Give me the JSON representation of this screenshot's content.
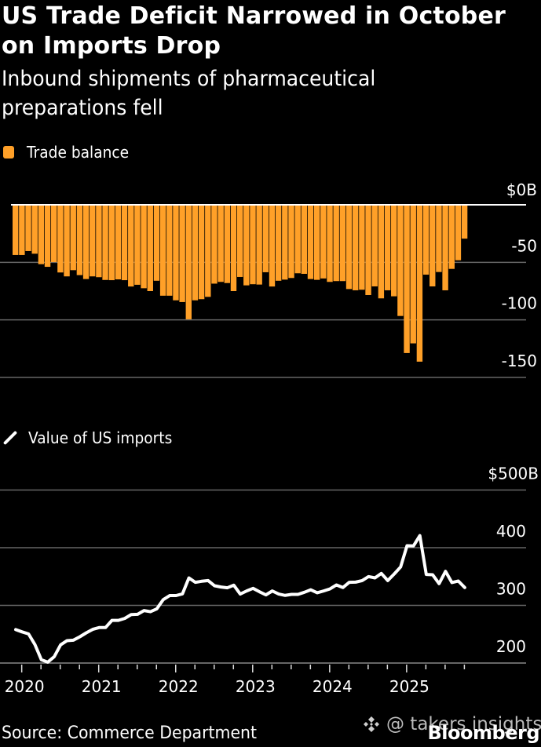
{
  "header": {
    "title": "US Trade Deficit Narrowed in October on Imports Drop",
    "subtitle": "Inbound shipments of pharmaceutical preparations fell"
  },
  "footer": {
    "source": "Source: Commerce Department",
    "brand": "Bloomberg",
    "watermark": "@ takers insights",
    "watermark_icon": "diamond-logo-icon"
  },
  "colors": {
    "bar": "#ffa028",
    "line": "#ffffff",
    "background": "#000000",
    "grid": "#666666"
  },
  "chart_data": [
    {
      "type": "bar",
      "title": "Trade balance",
      "legend": "Trade balance",
      "legend_position": "top-left",
      "ylabel": "",
      "y_unit": "$B",
      "ylim": [
        -150,
        0
      ],
      "yticks": [
        0,
        -50,
        -100,
        -150
      ],
      "ytick_labels": [
        "$0B",
        "-50",
        "-100",
        "-150"
      ],
      "grid": true,
      "x_start": "2019-12",
      "x_end": "2025-10",
      "frequency": "monthly",
      "values": [
        -43.6,
        -43.6,
        -40.2,
        -42.5,
        -51.6,
        -53.9,
        -49.8,
        -58.8,
        -62.2,
        -56.8,
        -61.1,
        -64.5,
        -62.2,
        -62.9,
        -65.3,
        -65.5,
        -64.8,
        -65.5,
        -71.0,
        -69.5,
        -72.5,
        -75.0,
        -66.0,
        -79.0,
        -79.0,
        -83.0,
        -84.5,
        -99.5,
        -83.0,
        -82.0,
        -80.0,
        -68.5,
        -67.0,
        -68.0,
        -75.0,
        -62.7,
        -70.0,
        -69.0,
        -69.3,
        -58.6,
        -71.0,
        -66.0,
        -65.0,
        -63.6,
        -59.5,
        -60.0,
        -64.5,
        -65.2,
        -64.0,
        -67.0,
        -66.3,
        -66.3,
        -73.2,
        -74.3,
        -73.8,
        -78.4,
        -70.9,
        -81.3,
        -74.3,
        -79.5,
        -96.6,
        -128.8,
        -120.4,
        -136.3,
        -60.7,
        -70.9,
        -58.4,
        -74.3,
        -55.7,
        -48.2,
        -29.4
      ]
    },
    {
      "type": "line",
      "title": "Value of US imports",
      "legend": "Value of US imports",
      "legend_position": "top-left",
      "ylabel": "",
      "y_unit": "$B",
      "ylim": [
        200,
        500
      ],
      "yticks": [
        500,
        400,
        300,
        200
      ],
      "ytick_labels": [
        "$500B",
        "400",
        "300",
        "200"
      ],
      "grid": true,
      "x_start": "2019-12",
      "x_end": "2025-10",
      "frequency": "monthly",
      "xtick_labels": [
        "2020",
        "2021",
        "2022",
        "2023",
        "2024",
        "2025"
      ],
      "values": [
        258,
        254,
        250.5,
        232,
        205.7,
        201.6,
        211,
        231.5,
        238.8,
        239.7,
        245.6,
        252.4,
        258.4,
        261.5,
        261.5,
        274,
        274,
        277.4,
        284,
        284.5,
        291,
        289,
        294,
        310,
        317,
        317,
        320,
        347.6,
        340,
        341.8,
        343,
        334,
        331.8,
        330.5,
        335,
        319.6,
        325,
        329.5,
        323.6,
        318.2,
        325,
        319.6,
        317.3,
        319,
        319,
        322.7,
        327,
        321.8,
        325,
        328.6,
        335.4,
        330.9,
        340,
        340.3,
        343,
        349.9,
        347.6,
        355.4,
        343,
        354.4,
        366.6,
        403.4,
        403,
        421,
        353.6,
        353,
        337.7,
        359,
        339.5,
        342.2,
        330.9
      ]
    }
  ]
}
